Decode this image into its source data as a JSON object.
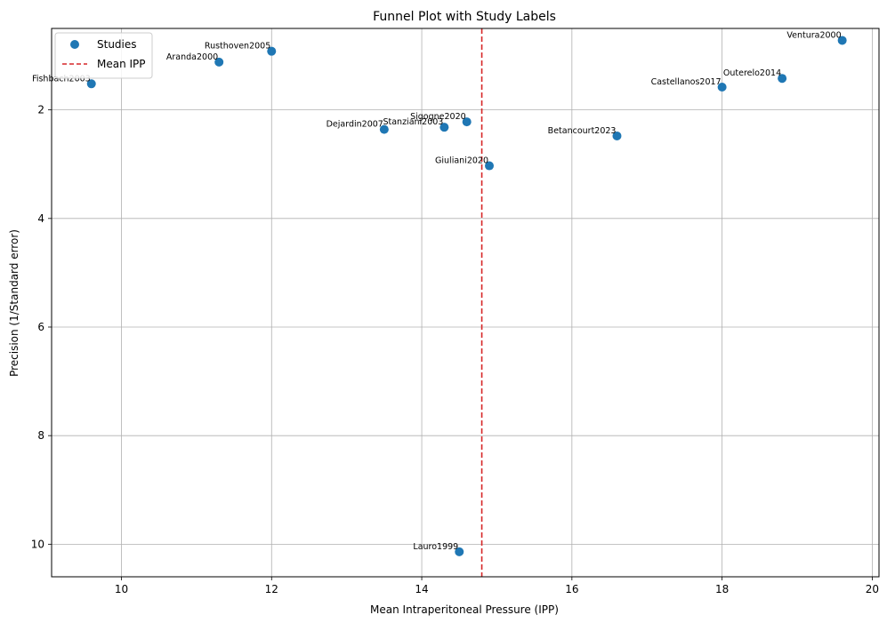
{
  "chart_data": {
    "type": "scatter",
    "title": "Funnel Plot with Study Labels",
    "xlabel": "Mean Intraperitoneal Pressure (IPP)",
    "ylabel": "Precision (1/Standard error)",
    "xlim": [
      9.07,
      20.09
    ],
    "ylim": [
      0.5,
      10.6
    ],
    "y_inverted": true,
    "xticks": [
      10,
      12,
      14,
      16,
      18,
      20
    ],
    "yticks": [
      2,
      4,
      6,
      8,
      10
    ],
    "grid": true,
    "legend_position": "top-left",
    "series": [
      {
        "name": "Studies",
        "color": "#1f77b4",
        "points": [
          {
            "label": "Ventura2000",
            "x": 19.6,
            "y": 0.72
          },
          {
            "label": "Rusthoven2005",
            "x": 12.0,
            "y": 0.92
          },
          {
            "label": "Aranda2000",
            "x": 11.3,
            "y": 1.12
          },
          {
            "label": "Outerelo2014",
            "x": 18.8,
            "y": 1.42
          },
          {
            "label": "Fishbach2003",
            "x": 9.6,
            "y": 1.52
          },
          {
            "label": "Castellanos2017",
            "x": 18.0,
            "y": 1.58
          },
          {
            "label": "Sigogne2020",
            "x": 14.6,
            "y": 2.22
          },
          {
            "label": "Stanziani2003",
            "x": 14.3,
            "y": 2.32
          },
          {
            "label": "Dejardin2007",
            "x": 13.5,
            "y": 2.36
          },
          {
            "label": "Betancourt2023",
            "x": 16.6,
            "y": 2.48
          },
          {
            "label": "Giuliani2020",
            "x": 14.9,
            "y": 3.03
          },
          {
            "label": "Lauro1999",
            "x": 14.5,
            "y": 10.14
          }
        ]
      }
    ],
    "reference_lines": [
      {
        "name": "Mean IPP",
        "orientation": "vertical",
        "x": 14.8,
        "color": "#d62728",
        "style": "dashed"
      }
    ]
  }
}
